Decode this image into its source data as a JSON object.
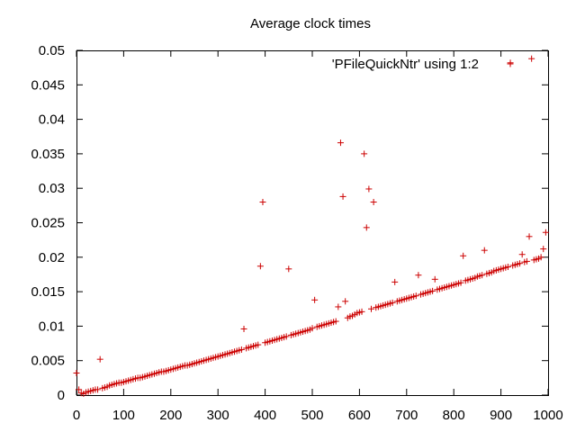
{
  "chart_data": {
    "type": "scatter",
    "title": "Average clock times",
    "xlabel": "",
    "ylabel": "",
    "xlim": [
      0,
      1000
    ],
    "ylim": [
      0,
      0.05
    ],
    "grid": false,
    "legend_position": "top-right",
    "x_ticks": [
      "0",
      "100",
      "200",
      "300",
      "400",
      "500",
      "600",
      "700",
      "800",
      "900",
      "1000"
    ],
    "y_ticks": [
      "0",
      "0.005",
      "0.01",
      "0.015",
      "0.02",
      "0.025",
      "0.03",
      "0.035",
      "0.04",
      "0.045",
      "0.05"
    ],
    "series": [
      {
        "name": "'PFileQuickNtr' using 1:2",
        "color": "#cc0000",
        "marker": "plus",
        "points": [
          [
            0,
            0.0032
          ],
          [
            5,
            0.0008
          ],
          [
            10,
            0.0003
          ],
          [
            15,
            0.0002
          ],
          [
            20,
            0.0004
          ],
          [
            25,
            0.0005
          ],
          [
            30,
            0.0006
          ],
          [
            35,
            0.0007
          ],
          [
            40,
            0.0008
          ],
          [
            45,
            0.0008
          ],
          [
            50,
            0.0052
          ],
          [
            55,
            0.001
          ],
          [
            60,
            0.0011
          ],
          [
            65,
            0.0012
          ],
          [
            70,
            0.0014
          ],
          [
            75,
            0.0015
          ],
          [
            80,
            0.0016
          ],
          [
            85,
            0.0017
          ],
          [
            90,
            0.0018
          ],
          [
            95,
            0.0018
          ],
          [
            100,
            0.0019
          ],
          [
            105,
            0.002
          ],
          [
            110,
            0.0021
          ],
          [
            115,
            0.0022
          ],
          [
            120,
            0.0023
          ],
          [
            125,
            0.0024
          ],
          [
            130,
            0.0025
          ],
          [
            135,
            0.0025
          ],
          [
            140,
            0.0026
          ],
          [
            145,
            0.0027
          ],
          [
            150,
            0.0028
          ],
          [
            155,
            0.0029
          ],
          [
            160,
            0.003
          ],
          [
            165,
            0.0031
          ],
          [
            170,
            0.0032
          ],
          [
            175,
            0.0033
          ],
          [
            180,
            0.0034
          ],
          [
            185,
            0.0034
          ],
          [
            190,
            0.0035
          ],
          [
            195,
            0.0036
          ],
          [
            200,
            0.0037
          ],
          [
            205,
            0.0038
          ],
          [
            210,
            0.0039
          ],
          [
            215,
            0.004
          ],
          [
            220,
            0.0041
          ],
          [
            225,
            0.0042
          ],
          [
            230,
            0.0043
          ],
          [
            235,
            0.0043
          ],
          [
            240,
            0.0044
          ],
          [
            245,
            0.0045
          ],
          [
            250,
            0.0046
          ],
          [
            255,
            0.0047
          ],
          [
            260,
            0.0048
          ],
          [
            265,
            0.0049
          ],
          [
            270,
            0.005
          ],
          [
            275,
            0.0051
          ],
          [
            280,
            0.0052
          ],
          [
            285,
            0.0053
          ],
          [
            290,
            0.0054
          ],
          [
            295,
            0.0055
          ],
          [
            300,
            0.0056
          ],
          [
            305,
            0.0057
          ],
          [
            310,
            0.0058
          ],
          [
            315,
            0.0059
          ],
          [
            320,
            0.006
          ],
          [
            325,
            0.0061
          ],
          [
            330,
            0.0062
          ],
          [
            335,
            0.0063
          ],
          [
            340,
            0.0064
          ],
          [
            345,
            0.0065
          ],
          [
            350,
            0.0066
          ],
          [
            355,
            0.0096
          ],
          [
            360,
            0.0068
          ],
          [
            365,
            0.0069
          ],
          [
            370,
            0.007
          ],
          [
            375,
            0.0071
          ],
          [
            380,
            0.0072
          ],
          [
            385,
            0.0073
          ],
          [
            390,
            0.0187
          ],
          [
            395,
            0.028
          ],
          [
            400,
            0.0076
          ],
          [
            405,
            0.0077
          ],
          [
            410,
            0.0078
          ],
          [
            415,
            0.0079
          ],
          [
            420,
            0.008
          ],
          [
            425,
            0.0081
          ],
          [
            430,
            0.0082
          ],
          [
            435,
            0.0083
          ],
          [
            440,
            0.0084
          ],
          [
            445,
            0.0085
          ],
          [
            450,
            0.0183
          ],
          [
            455,
            0.0087
          ],
          [
            460,
            0.0088
          ],
          [
            465,
            0.0089
          ],
          [
            470,
            0.009
          ],
          [
            475,
            0.0091
          ],
          [
            480,
            0.0092
          ],
          [
            485,
            0.0093
          ],
          [
            490,
            0.0094
          ],
          [
            495,
            0.0095
          ],
          [
            500,
            0.0097
          ],
          [
            505,
            0.0138
          ],
          [
            510,
            0.0099
          ],
          [
            515,
            0.01
          ],
          [
            520,
            0.0101
          ],
          [
            525,
            0.0102
          ],
          [
            530,
            0.0103
          ],
          [
            535,
            0.0104
          ],
          [
            540,
            0.0105
          ],
          [
            545,
            0.0106
          ],
          [
            550,
            0.0107
          ],
          [
            555,
            0.0128
          ],
          [
            560,
            0.0366
          ],
          [
            565,
            0.0288
          ],
          [
            570,
            0.0136
          ],
          [
            575,
            0.0112
          ],
          [
            580,
            0.0114
          ],
          [
            585,
            0.0115
          ],
          [
            590,
            0.0117
          ],
          [
            595,
            0.0119
          ],
          [
            600,
            0.012
          ],
          [
            605,
            0.0121
          ],
          [
            610,
            0.035
          ],
          [
            615,
            0.0243
          ],
          [
            620,
            0.0299
          ],
          [
            625,
            0.0125
          ],
          [
            630,
            0.028
          ],
          [
            635,
            0.0127
          ],
          [
            640,
            0.0128
          ],
          [
            645,
            0.0129
          ],
          [
            650,
            0.013
          ],
          [
            655,
            0.0131
          ],
          [
            660,
            0.0132
          ],
          [
            665,
            0.0133
          ],
          [
            670,
            0.0134
          ],
          [
            675,
            0.0164
          ],
          [
            680,
            0.0136
          ],
          [
            685,
            0.0137
          ],
          [
            690,
            0.0138
          ],
          [
            695,
            0.0139
          ],
          [
            700,
            0.014
          ],
          [
            705,
            0.0141
          ],
          [
            710,
            0.0142
          ],
          [
            715,
            0.0143
          ],
          [
            720,
            0.0144
          ],
          [
            725,
            0.0174
          ],
          [
            730,
            0.0146
          ],
          [
            735,
            0.0147
          ],
          [
            740,
            0.0148
          ],
          [
            745,
            0.0149
          ],
          [
            750,
            0.015
          ],
          [
            755,
            0.0151
          ],
          [
            760,
            0.0168
          ],
          [
            765,
            0.0153
          ],
          [
            770,
            0.0154
          ],
          [
            775,
            0.0155
          ],
          [
            780,
            0.0156
          ],
          [
            785,
            0.0157
          ],
          [
            790,
            0.0158
          ],
          [
            795,
            0.0159
          ],
          [
            800,
            0.016
          ],
          [
            805,
            0.0161
          ],
          [
            810,
            0.0162
          ],
          [
            815,
            0.0163
          ],
          [
            820,
            0.0202
          ],
          [
            825,
            0.0166
          ],
          [
            830,
            0.0167
          ],
          [
            835,
            0.0168
          ],
          [
            840,
            0.0169
          ],
          [
            845,
            0.017
          ],
          [
            850,
            0.0172
          ],
          [
            855,
            0.0173
          ],
          [
            860,
            0.0174
          ],
          [
            865,
            0.021
          ],
          [
            870,
            0.0176
          ],
          [
            875,
            0.0177
          ],
          [
            880,
            0.0178
          ],
          [
            885,
            0.018
          ],
          [
            890,
            0.0181
          ],
          [
            895,
            0.0182
          ],
          [
            900,
            0.0183
          ],
          [
            905,
            0.0184
          ],
          [
            910,
            0.0185
          ],
          [
            915,
            0.0186
          ],
          [
            920,
            0.0482
          ],
          [
            925,
            0.0188
          ],
          [
            930,
            0.0189
          ],
          [
            935,
            0.019
          ],
          [
            940,
            0.0191
          ],
          [
            945,
            0.0204
          ],
          [
            950,
            0.0193
          ],
          [
            955,
            0.0194
          ],
          [
            960,
            0.023
          ],
          [
            965,
            0.0488
          ],
          [
            970,
            0.0196
          ],
          [
            975,
            0.0197
          ],
          [
            980,
            0.0198
          ],
          [
            985,
            0.02
          ],
          [
            990,
            0.0212
          ],
          [
            995,
            0.0236
          ]
        ]
      }
    ]
  }
}
